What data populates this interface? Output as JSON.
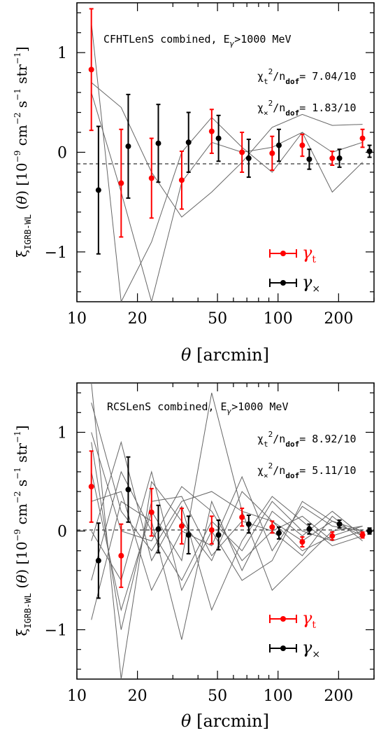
{
  "chart_data": [
    {
      "type": "scatter",
      "title": "CFHTLenS combined, Eγ>1000 MeV",
      "stats": [
        {
          "label": "χt²/ndof=",
          "value": "7.04/10"
        },
        {
          "label": "χ×²/ndof=",
          "value": "1.83/10"
        }
      ],
      "xlabel": "θ [arcmin]",
      "ylabel": "ξIGRB-WL (θ) [10⁻⁹ cm⁻² s⁻¹ str⁻¹]",
      "xscale": "log",
      "xlim": [
        10,
        300
      ],
      "ylim": [
        -1.5,
        1.5
      ],
      "xticks": [
        10,
        20,
        50,
        100,
        200
      ],
      "xtick_labels": [
        "10",
        "20",
        "50",
        "100",
        "200"
      ],
      "yticks": [
        -1,
        0,
        1
      ],
      "ytick_labels": [
        "−1",
        "0",
        "1"
      ],
      "legend_position": "bottom-right",
      "series": [
        {
          "name": "γt",
          "color": "#ff0000",
          "x": [
            11.8,
            16.6,
            23.5,
            33.2,
            46.8,
            66.2,
            93.5,
            132,
            186,
            263
          ],
          "y": [
            0.83,
            -0.31,
            -0.26,
            -0.28,
            0.21,
            0.0,
            -0.01,
            0.07,
            -0.06,
            0.14
          ],
          "err": [
            0.61,
            0.54,
            0.4,
            0.29,
            0.22,
            0.2,
            0.17,
            0.11,
            0.07,
            0.09
          ]
        },
        {
          "name": "γ×",
          "color": "#000000",
          "x": [
            12.8,
            18.0,
            25.4,
            35.9,
            50.6,
            71.5,
            101,
            143,
            202,
            285
          ],
          "y": [
            -0.38,
            0.06,
            0.09,
            0.1,
            0.14,
            -0.06,
            0.07,
            -0.07,
            -0.06,
            0.01
          ],
          "err": [
            0.64,
            0.52,
            0.39,
            0.3,
            0.23,
            0.19,
            0.16,
            0.1,
            0.09,
            0.06
          ]
        }
      ],
      "mocks": [
        {
          "x": [
            11.8,
            16.6,
            23.5,
            33.2,
            46.8,
            66.2,
            93.5,
            132,
            186,
            263
          ],
          "y": [
            1.3,
            -1.5,
            -0.9,
            0.0,
            0.35,
            0.05,
            -0.2,
            0.2,
            0.0,
            0.1
          ]
        },
        {
          "x": [
            11.8,
            16.6,
            23.5,
            33.2,
            46.8,
            66.2,
            93.5,
            132,
            186,
            263
          ],
          "y": [
            0.7,
            0.45,
            -0.2,
            -0.65,
            -0.4,
            -0.1,
            0.25,
            0.38,
            0.27,
            0.28
          ]
        },
        {
          "x": [
            11.8,
            16.6,
            23.5,
            33.2,
            46.8,
            66.2,
            93.5,
            132,
            186,
            263
          ],
          "y": [
            0.6,
            -0.4,
            -1.5,
            -0.3,
            0.1,
            0.0,
            0.05,
            0.2,
            -0.4,
            -0.1
          ]
        }
      ]
    },
    {
      "type": "scatter",
      "title": "RCSLenS combined, Eγ>1000 MeV",
      "stats": [
        {
          "label": "χt²/ndof=",
          "value": "8.92/10"
        },
        {
          "label": "χ×²/ndof=",
          "value": "5.11/10"
        }
      ],
      "xlabel": "θ [arcmin]",
      "ylabel": "ξIGRB-WL (θ) [10⁻⁹ cm⁻² s⁻¹ str⁻¹]",
      "xscale": "log",
      "xlim": [
        10,
        300
      ],
      "ylim": [
        -1.5,
        1.5
      ],
      "xticks": [
        10,
        20,
        50,
        100,
        200
      ],
      "xtick_labels": [
        "10",
        "20",
        "50",
        "100",
        "200"
      ],
      "yticks": [
        -1,
        0,
        1
      ],
      "ytick_labels": [
        "−1",
        "0",
        "1"
      ],
      "legend_position": "bottom-right",
      "series": [
        {
          "name": "γt",
          "color": "#ff0000",
          "x": [
            11.8,
            16.6,
            23.5,
            33.2,
            46.8,
            66.2,
            93.5,
            132,
            186,
            263
          ],
          "y": [
            0.45,
            -0.25,
            0.19,
            0.05,
            0.01,
            0.14,
            0.04,
            -0.11,
            -0.05,
            -0.04
          ],
          "err": [
            0.36,
            0.32,
            0.24,
            0.18,
            0.14,
            0.09,
            0.06,
            0.05,
            0.04,
            0.03
          ]
        },
        {
          "name": "γ×",
          "color": "#000000",
          "x": [
            12.8,
            18.0,
            25.4,
            35.9,
            50.6,
            71.5,
            101,
            143,
            202,
            285
          ],
          "y": [
            -0.3,
            0.42,
            0.02,
            -0.04,
            -0.04,
            0.07,
            -0.02,
            0.02,
            0.07,
            0.0
          ],
          "err": [
            0.38,
            0.33,
            0.24,
            0.19,
            0.15,
            0.09,
            0.06,
            0.05,
            0.04,
            0.03
          ]
        }
      ],
      "mocks": [
        {
          "x": [
            11.8,
            16.6,
            23.5,
            33.2,
            46.8,
            66.2,
            93.5,
            132,
            186,
            263
          ],
          "y": [
            1.5,
            -1.5,
            0.5,
            0.1,
            -0.3,
            0.4,
            0.1,
            -0.1,
            0.1,
            -0.05
          ]
        },
        {
          "x": [
            11.8,
            16.6,
            23.5,
            33.2,
            46.8,
            66.2,
            93.5,
            132,
            186,
            263
          ],
          "y": [
            1.3,
            0.2,
            -0.2,
            0.3,
            0.4,
            0.2,
            -0.6,
            -0.3,
            0.0,
            0.05
          ]
        },
        {
          "x": [
            11.8,
            16.6,
            23.5,
            33.2,
            46.8,
            66.2,
            93.5,
            132,
            186,
            263
          ],
          "y": [
            -0.5,
            0.6,
            0.0,
            -0.5,
            0.1,
            -0.2,
            0.3,
            0.0,
            -0.1,
            0.0
          ]
        },
        {
          "x": [
            11.8,
            16.6,
            23.5,
            33.2,
            46.8,
            66.2,
            93.5,
            132,
            186,
            263
          ],
          "y": [
            0.9,
            -1.0,
            0.3,
            0.35,
            -0.25,
            0.1,
            0.0,
            0.15,
            -0.1,
            0.0
          ]
        },
        {
          "x": [
            11.8,
            16.6,
            23.5,
            33.2,
            46.8,
            66.2,
            93.5,
            132,
            186,
            263
          ],
          "y": [
            -0.9,
            0.3,
            0.1,
            -1.1,
            0.3,
            -0.4,
            0.2,
            -0.05,
            0.2,
            -0.05
          ]
        },
        {
          "x": [
            11.8,
            16.6,
            23.5,
            33.2,
            46.8,
            66.2,
            93.5,
            132,
            186,
            263
          ],
          "y": [
            0.3,
            0.4,
            -0.6,
            0.0,
            -0.15,
            0.55,
            -0.2,
            0.25,
            0.05,
            0.0
          ]
        },
        {
          "x": [
            11.8,
            16.6,
            23.5,
            33.2,
            46.8,
            66.2,
            93.5,
            132,
            186,
            263
          ],
          "y": [
            0.6,
            -0.8,
            0.2,
            -0.3,
            1.4,
            0.2,
            0.1,
            -0.2,
            -0.05,
            0.05
          ]
        },
        {
          "x": [
            11.8,
            16.6,
            23.5,
            33.2,
            46.8,
            66.2,
            93.5,
            132,
            186,
            263
          ],
          "y": [
            -0.1,
            0.9,
            -0.3,
            0.25,
            -0.8,
            -0.1,
            0.35,
            0.1,
            -0.15,
            -0.05
          ]
        },
        {
          "x": [
            11.8,
            16.6,
            23.5,
            33.2,
            46.8,
            66.2,
            93.5,
            132,
            186,
            263
          ],
          "y": [
            0.0,
            -0.5,
            0.6,
            -0.6,
            0.0,
            -0.5,
            -0.3,
            0.3,
            0.1,
            0.0
          ]
        },
        {
          "x": [
            11.8,
            16.6,
            23.5,
            33.2,
            46.8,
            66.2,
            93.5,
            132,
            186,
            263
          ],
          "y": [
            1.0,
            0.0,
            -0.1,
            0.45,
            0.2,
            -0.3,
            0.0,
            -0.25,
            0.15,
            -0.1
          ]
        }
      ]
    }
  ]
}
